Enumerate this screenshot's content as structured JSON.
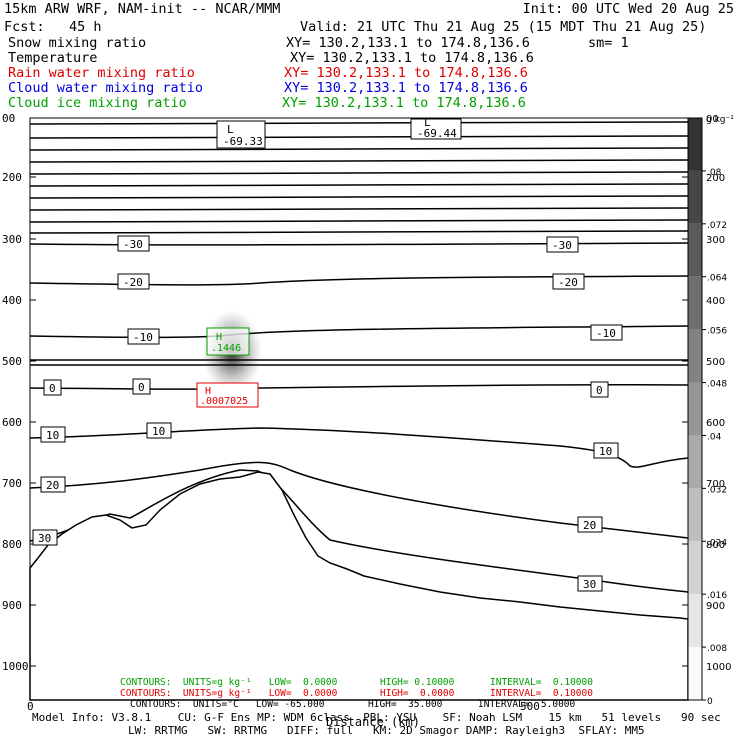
{
  "header": {
    "model": "15km ARW WRF, NAM-init -- NCAR/MMM",
    "init": "Init: 00 UTC Wed 20 Aug 25",
    "fcst": "Fcst:   45 h",
    "valid": "Valid: 21 UTC Thu 21 Aug 25 (15 MDT Thu 21 Aug 25)",
    "fields": [
      {
        "name": "Snow mixing ratio",
        "xy": "XY= 130.2,133.1 to 174.8,136.6",
        "extra": "sm= 1",
        "color": "#000000"
      },
      {
        "name": "Temperature",
        "xy": "XY= 130.2,133.1 to 174.8,136.6",
        "extra": "",
        "color": "#000000"
      },
      {
        "name": "Rain water mixing ratio",
        "xy": "XY= 130.2,133.1 to 174.8,136.6",
        "extra": "",
        "color": "#e00000"
      },
      {
        "name": "Cloud water mixing ratio",
        "xy": "XY= 130.2,133.1 to 174.8,136.6",
        "extra": "",
        "color": "#0000e0"
      },
      {
        "name": "Cloud ice mixing ratio",
        "xy": "XY= 130.2,133.1 to 174.8,136.6",
        "extra": "",
        "color": "#00a000"
      }
    ]
  },
  "chart_data": {
    "type": "contour",
    "xlabel": "Distance (km)",
    "x_ticks": [
      "0",
      "500"
    ],
    "y_ticks": [
      "00",
      "200",
      "300",
      "400",
      "500",
      "600",
      "700",
      "800",
      "900",
      "1000"
    ],
    "y_ticks_alt": [
      "00",
      "200",
      "300",
      "400",
      "500",
      "600",
      "700",
      "800",
      "900",
      "1000"
    ],
    "colorbar_unit": "g kg⁻¹",
    "colorbar_ticks": [
      "0",
      ".008",
      ".016",
      ".024",
      ".032",
      ".04",
      ".048",
      ".056",
      ".064",
      ".072",
      ".08"
    ],
    "colorbar_range": [
      0,
      0.088
    ],
    "isotherm_labels": [
      "-30",
      "-20",
      "-10",
      "0",
      "10",
      "20",
      "30"
    ],
    "extrema": [
      {
        "type": "L",
        "value": "-69.33",
        "color": "#000000"
      },
      {
        "type": "L",
        "value": "-69.44",
        "color": "#000000"
      },
      {
        "type": "H",
        "value": ".1446",
        "color": "#00a000"
      },
      {
        "type": "H",
        "value": ".0007025",
        "color": "#e00000"
      }
    ],
    "contours": [
      {
        "units": "CONTOURS:  UNITS=g kg⁻¹   LOW=  0.0000",
        "high": "HIGH= 0.10000",
        "interval": "INTERVAL=  0.10000",
        "color": "#00a000"
      },
      {
        "units": "CONTOURS:  UNITS=g kg⁻¹   LOW=  0.0000",
        "high": "HIGH=  0.0000",
        "interval": "INTERVAL=  0.10000",
        "color": "#e00000"
      },
      {
        "units": "CONTOURS:  UNITS=°C   LOW= -65.000",
        "high": "HIGH=  35.000",
        "interval": "INTERVAL=  5.0000",
        "color": "#000000"
      }
    ]
  },
  "footer": {
    "line1": "Model Info: V3.8.1    CU: G-F Ens MP: WDM 6class  PBL: YSU    SF: Noah LSM    15 km   51 levels   90 sec",
    "line2": "LW: RRTMG   SW: RRTMG   DIFF: full   KM: 2D Smagor DAMP: Rayleigh3  SFLAY: MM5"
  }
}
